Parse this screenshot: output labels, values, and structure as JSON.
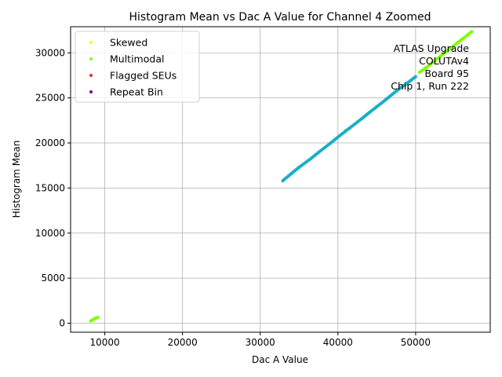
{
  "chart_data": {
    "type": "scatter",
    "title": "Histogram Mean vs Dac A Value for Channel 4 Zoomed",
    "xlabel": "Dac A Value",
    "ylabel": "Histogram Mean",
    "xlim": [
      5600,
      59600
    ],
    "ylim": [
      -1000,
      32900
    ],
    "xticks": [
      10000,
      20000,
      30000,
      40000,
      50000
    ],
    "yticks": [
      0,
      5000,
      10000,
      15000,
      20000,
      25000,
      30000
    ],
    "grid": true,
    "legend_position": "upper-left",
    "annotation": [
      "ATLAS Upgrade",
      "COLUTAv4",
      "Board 95",
      "Chip 1, Run 222"
    ],
    "series": [
      {
        "name": "Skewed",
        "color": "#ffff00",
        "x": [
          33500,
          38000,
          42500
        ],
        "y": [
          16250,
          19300,
          22350
        ]
      },
      {
        "name": "Multimodal",
        "color": "#7fff00",
        "x": [
          8200,
          8500,
          8800,
          9100,
          36000,
          41000,
          45000,
          48000,
          50500,
          51500,
          52500,
          53500,
          54500,
          55500,
          56500,
          57200
        ],
        "y": [
          250,
          400,
          550,
          650,
          17950,
          21400,
          24050,
          26150,
          27850,
          28450,
          29150,
          29850,
          30500,
          31200,
          31850,
          32350
        ]
      },
      {
        "name": "Flagged SEUs",
        "color": "#e03030",
        "x": [],
        "y": []
      },
      {
        "name": "Repeat Bin",
        "color": "#7f007f",
        "x": [],
        "y": []
      },
      {
        "name": "",
        "color": "#1aafc8",
        "x": [
          32900,
          34000,
          35000,
          36500,
          37500,
          39000,
          40000,
          41500,
          43000,
          44000,
          45500,
          46500,
          47500,
          49000,
          50000
        ],
        "y": [
          15800,
          16600,
          17300,
          18250,
          18950,
          19950,
          20650,
          21650,
          22650,
          23350,
          24350,
          25050,
          25750,
          26700,
          27350
        ]
      }
    ]
  }
}
